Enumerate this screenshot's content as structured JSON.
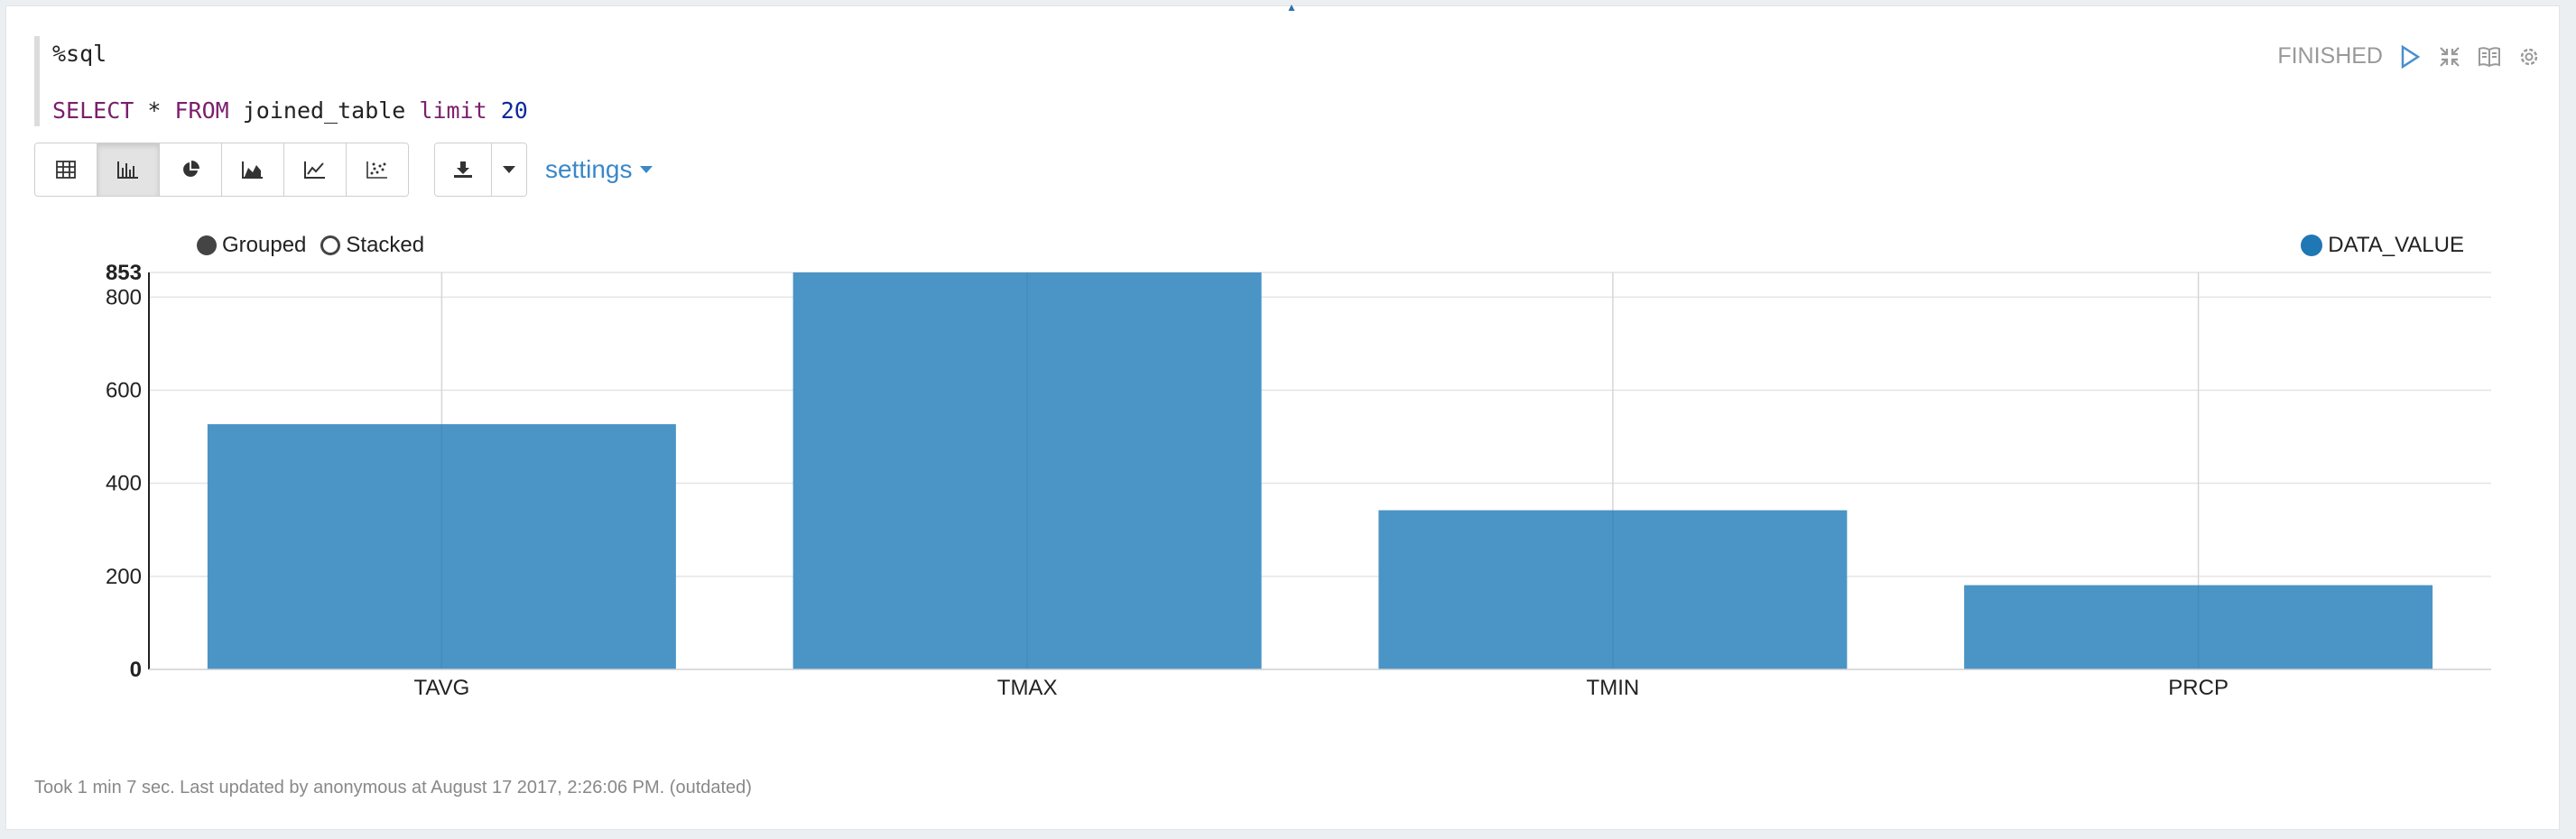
{
  "editor": {
    "interpreter": "%sql",
    "query_tokens": [
      {
        "text": "SELECT",
        "style": "kw"
      },
      {
        "text": " * ",
        "style": "plain"
      },
      {
        "text": "FROM",
        "style": "kw"
      },
      {
        "text": " joined_table ",
        "style": "plain"
      },
      {
        "text": "limit",
        "style": "kw"
      },
      {
        "text": " ",
        "style": "plain"
      },
      {
        "text": "20",
        "style": "num"
      }
    ]
  },
  "status": {
    "label": "FINISHED",
    "icons": [
      "run-icon",
      "collapse-icon",
      "book-icon",
      "gear-icon"
    ]
  },
  "toolbar": {
    "view_buttons": [
      {
        "name": "table-view-button",
        "icon": "table-icon",
        "active": false
      },
      {
        "name": "bar-chart-button",
        "icon": "bar-chart-icon",
        "active": true
      },
      {
        "name": "pie-chart-button",
        "icon": "pie-chart-icon",
        "active": false
      },
      {
        "name": "area-chart-button",
        "icon": "area-chart-icon",
        "active": false
      },
      {
        "name": "line-chart-button",
        "icon": "line-chart-icon",
        "active": false
      },
      {
        "name": "scatter-chart-button",
        "icon": "scatter-chart-icon",
        "active": false
      }
    ],
    "download_icon": "download-icon",
    "settings_label": "settings"
  },
  "legend": {
    "grouped_label": "Grouped",
    "stacked_label": "Stacked",
    "series_label": "DATA_VALUE"
  },
  "chart_data": {
    "type": "bar",
    "categories": [
      "TAVG",
      "TMAX",
      "TMIN",
      "PRCP"
    ],
    "series": [
      {
        "name": "DATA_VALUE",
        "values": [
          527,
          853,
          342,
          181
        ],
        "color": "#1f77b4"
      }
    ],
    "ylim": [
      0,
      853
    ],
    "yticks": [
      0,
      200,
      400,
      600,
      800,
      853
    ],
    "grid": true,
    "legend_position": "top-right",
    "mode": "grouped"
  },
  "footer": {
    "text": "Took 1 min 7 sec. Last updated by anonymous at August 17 2017, 2:26:06 PM. (outdated)"
  },
  "colors": {
    "bar": "#4a94c6",
    "accent": "#3a88c9",
    "keyword": "#7a1f6c",
    "number": "#0b2a9a"
  }
}
